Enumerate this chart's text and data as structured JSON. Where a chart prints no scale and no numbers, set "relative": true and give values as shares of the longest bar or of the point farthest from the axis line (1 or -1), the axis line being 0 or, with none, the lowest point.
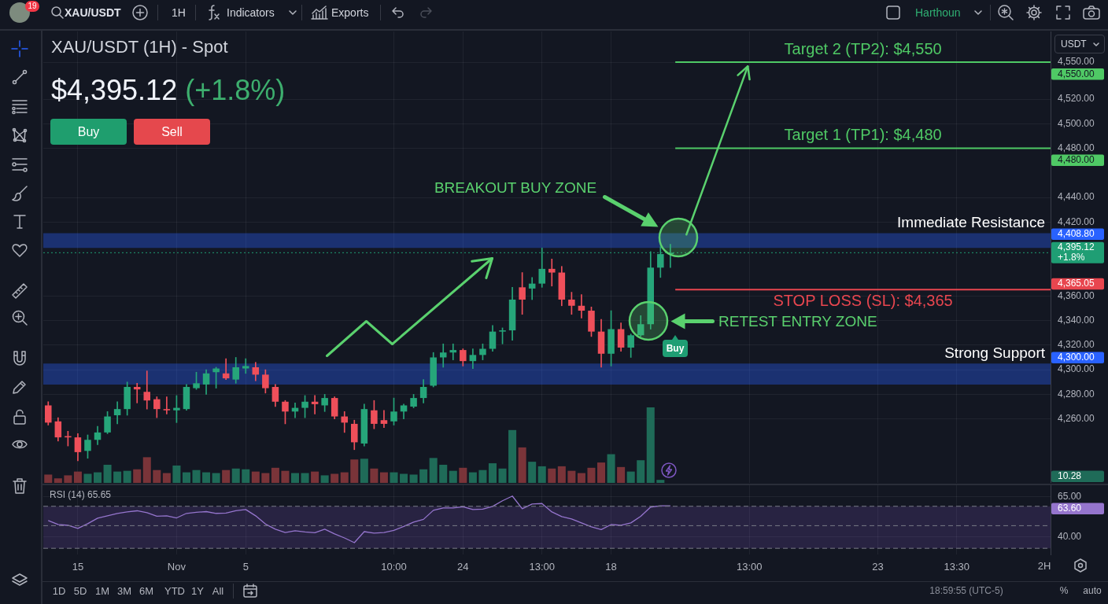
{
  "chart_data": [
    {
      "type": "candlestick",
      "title": "XAU/USDT (1H) - Spot",
      "subtitle": "$4,395.12 (+1.8%)",
      "categories": [
        null,
        null,
        null,
        null,
        null,
        null,
        null,
        null,
        null,
        null,
        null,
        null,
        null,
        null,
        null,
        null,
        null,
        null,
        null,
        null,
        null,
        null,
        null,
        null,
        null,
        null,
        null,
        null,
        null,
        null,
        null,
        null,
        null,
        null,
        null,
        null,
        null,
        null,
        null,
        null,
        null,
        null,
        null,
        null,
        null,
        null,
        null,
        null,
        null,
        null,
        null,
        null,
        null,
        null,
        null,
        null,
        null,
        null,
        null,
        null,
        null,
        null,
        null,
        null,
        null,
        null,
        null,
        null,
        null,
        null,
        null,
        null,
        null,
        null,
        null,
        null,
        null,
        null,
        null,
        null,
        null,
        null,
        null,
        null,
        null,
        null,
        null,
        null,
        null,
        null,
        null,
        null,
        null,
        null,
        null,
        null,
        null,
        null,
        null,
        null,
        null,
        null
      ],
      "ohlc": [
        [
          4271,
          4274,
          4255,
          4257
        ],
        [
          4258,
          4261,
          4242,
          4245
        ],
        [
          4246,
          4250,
          4238,
          4245
        ],
        [
          4245,
          4248,
          4226,
          4233
        ],
        [
          4234,
          4247,
          4228,
          4243
        ],
        [
          4243,
          4254,
          4239,
          4249
        ],
        [
          4249,
          4266,
          4248,
          4262
        ],
        [
          4263,
          4274,
          4256,
          4268
        ],
        [
          4268,
          4290,
          4263,
          4286
        ],
        [
          4286,
          4289,
          4273,
          4284
        ],
        [
          4282,
          4299,
          4268,
          4275
        ],
        [
          4276,
          4278,
          4261,
          4268
        ],
        [
          4268,
          4278,
          4264,
          4267
        ],
        [
          4267,
          4279,
          4257,
          4269
        ],
        [
          4268,
          4288,
          4267,
          4286
        ],
        [
          4285,
          4298,
          4284,
          4289
        ],
        [
          4288,
          4300,
          4280,
          4297
        ],
        [
          4298,
          4302,
          4285,
          4301
        ],
        [
          4297,
          4309,
          4292,
          4293
        ],
        [
          4292,
          4310,
          4289,
          4302
        ],
        [
          4301,
          4309,
          4297,
          4303
        ],
        [
          4302,
          4306,
          4291,
          4296
        ],
        [
          4296,
          4300,
          4281,
          4285
        ],
        [
          4286,
          4288,
          4270,
          4274
        ],
        [
          4274,
          4275,
          4256,
          4266
        ],
        [
          4266,
          4273,
          4261,
          4269
        ],
        [
          4269,
          4279,
          4261,
          4274
        ],
        [
          4274,
          4279,
          4264,
          4272
        ],
        [
          4271,
          4280,
          4266,
          4277
        ],
        [
          4277,
          4278,
          4260,
          4262
        ],
        [
          4262,
          4266,
          4249,
          4257
        ],
        [
          4256,
          4259,
          4235,
          4241
        ],
        [
          4240,
          4272,
          4238,
          4268
        ],
        [
          4267,
          4275,
          4252,
          4256
        ],
        [
          4259,
          4267,
          4253,
          4256
        ],
        [
          4258,
          4277,
          4255,
          4266
        ],
        [
          4266,
          4272,
          4260,
          4271
        ],
        [
          4270,
          4280,
          4269,
          4277
        ],
        [
          4277,
          4292,
          4273,
          4286
        ],
        [
          4287,
          4314,
          4286,
          4310
        ],
        [
          4310,
          4321,
          4302,
          4314
        ],
        [
          4314,
          4321,
          4308,
          4316
        ],
        [
          4316,
          4317,
          4303,
          4307
        ],
        [
          4307,
          4317,
          4301,
          4312
        ],
        [
          4312,
          4321,
          4308,
          4317
        ],
        [
          4317,
          4336,
          4315,
          4331
        ],
        [
          4331,
          4334,
          4321,
          4332
        ],
        [
          4332,
          4367,
          4324,
          4357
        ],
        [
          4367,
          4379,
          4345,
          4357
        ],
        [
          4366,
          4375,
          4357,
          4370
        ],
        [
          4370,
          4399,
          4367,
          4382
        ],
        [
          4382,
          4390,
          4368,
          4379
        ],
        [
          4379,
          4384,
          4352,
          4357
        ],
        [
          4357,
          4363,
          4345,
          4352
        ],
        [
          4352,
          4361,
          4342,
          4348
        ],
        [
          4348,
          4351,
          4327,
          4331
        ],
        [
          4331,
          4341,
          4302,
          4313
        ],
        [
          4313,
          4348,
          4303,
          4333
        ],
        [
          4333,
          4338,
          4315,
          4318
        ],
        [
          4318,
          4329,
          4310,
          4328
        ],
        [
          4328,
          4344,
          4327,
          4337
        ],
        [
          4337,
          4396,
          4333,
          4383
        ],
        [
          4383,
          4400,
          4375,
          4394
        ],
        [
          4394,
          4402,
          4383,
          4395.12
        ],
        null,
        null,
        null,
        null,
        null,
        null,
        null,
        null,
        null,
        null,
        null,
        null,
        null,
        null,
        null,
        null,
        null,
        null,
        null,
        null,
        null,
        null,
        null,
        null,
        null,
        null,
        null,
        null,
        null,
        null,
        null,
        null,
        null,
        null,
        null,
        null,
        null,
        null
      ],
      "colors": [
        "#ef4f5a",
        "#ef4f5a",
        "#ef4f5a",
        "#ef4f5a",
        "#26a67a",
        "#26a67a",
        "#26a67a",
        "#26a67a",
        "#26a67a",
        "#ef4f5a",
        "#ef4f5a",
        "#ef4f5a",
        "#ef4f5a",
        "#26a67a",
        "#26a67a",
        "#26a67a",
        "#26a67a",
        "#26a67a",
        "#ef4f5a",
        "#26a67a",
        "#26a67a",
        "#ef4f5a",
        "#ef4f5a",
        "#ef4f5a",
        "#ef4f5a",
        "#26a67a",
        "#26a67a",
        "#ef4f5a",
        "#26a67a",
        "#ef4f5a",
        "#ef4f5a",
        "#ef4f5a",
        "#26a67a",
        "#ef4f5a",
        "#ef4f5a",
        "#26a67a",
        "#26a67a",
        "#26a67a",
        "#26a67a",
        "#26a67a",
        "#26a67a",
        "#26a67a",
        "#ef4f5a",
        "#26a67a",
        "#26a67a",
        "#26a67a",
        "#26a67a",
        "#26a67a",
        "#ef4f5a",
        "#26a67a",
        "#26a67a",
        "#ef4f5a",
        "#ef4f5a",
        "#ef4f5a",
        "#ef4f5a",
        "#ef4f5a",
        "#ef4f5a",
        "#26a67a",
        "#ef4f5a",
        "#26a67a",
        "#26a67a",
        "#26a67a",
        "#26a67a",
        "#26a67a",
        null,
        null,
        null,
        null,
        null,
        null,
        null,
        null,
        null,
        null,
        null,
        null,
        null,
        null,
        null,
        null,
        null,
        null,
        null,
        null,
        null,
        null,
        null,
        null,
        null,
        null,
        null,
        null,
        null,
        null,
        null,
        null,
        null,
        null,
        null,
        null,
        null,
        null
      ],
      "ylim": [
        4208,
        4575
      ],
      "yticks": [
        {
          "value": 4260,
          "label": "4,260.00"
        },
        {
          "value": 4280,
          "label": "4,280.00"
        },
        {
          "value": 4300,
          "label": "4,300.00"
        },
        {
          "value": 4320,
          "label": "4,320.00"
        },
        {
          "value": 4340,
          "label": "4,340.00"
        },
        {
          "value": 4360,
          "label": "4,360.00"
        },
        {
          "value": 4420,
          "label": "4,420.00"
        },
        {
          "value": 4440,
          "label": "4,440.00"
        },
        {
          "value": 4480,
          "label": "4,480.00"
        },
        {
          "value": 4500,
          "label": "4,500.00"
        },
        {
          "value": 4520,
          "label": "4,520.00"
        },
        {
          "value": 4550,
          "label": "4,550.00"
        }
      ],
      "ref_lines": [
        {
          "axis": "y",
          "value": 4550,
          "label": "Target 2 (TP2): $4,550",
          "color": "#4fc965"
        },
        {
          "axis": "y",
          "value": 4480,
          "label": "Target 1 (TP1): $4,480",
          "color": "#4fc965"
        },
        {
          "axis": "y",
          "value": 4395.12,
          "color": "#1f9e74",
          "line_style": "dotted"
        },
        {
          "axis": "y",
          "value": 4365.05,
          "label": "STOP LOSS (SL): $4,365",
          "color": "#e8464f"
        }
      ],
      "bands": [
        {
          "axis": "y",
          "from": 4399,
          "to": 4411,
          "label": "Immediate Resistance",
          "color": "#2962ff"
        },
        {
          "axis": "y",
          "from": 4288,
          "to": 4305,
          "label": "Strong Support",
          "color": "#2962ff"
        }
      ],
      "annotations": [
        "BREAKOUT BUY ZONE",
        "RETEST ENTRY ZONE",
        "Buy",
        "4,550.00",
        "4,480.00",
        "4,408.80",
        "4,395.12",
        "+1.8%",
        "4,300.00",
        "4,365.05",
        "XAU/USDT",
        "1H",
        "Indicators",
        "Exports",
        "Harthoun",
        "USDT",
        "Buy",
        "Sell",
        "1D",
        "5D",
        "1M",
        "3M",
        "6M",
        "YTD",
        "1Y",
        "All",
        "18:59:55 (UTC-5)",
        "%",
        "auto",
        "2H",
        "19"
      ],
      "grid": true,
      "tick_labels": "y"
    },
    {
      "type": "bar",
      "relative": true,
      "categories": [
        null,
        null,
        null,
        null,
        null,
        null,
        null,
        null,
        null,
        null,
        null,
        null,
        null,
        null,
        null,
        null,
        null,
        null,
        null,
        null,
        null,
        null,
        null,
        null,
        null,
        null,
        null,
        null,
        null,
        null,
        null,
        null,
        null,
        null,
        null,
        null,
        null,
        null,
        null,
        null,
        null,
        null,
        null,
        null,
        null,
        null,
        null,
        null,
        null,
        null,
        null,
        null,
        null,
        null,
        null,
        null,
        null,
        null,
        null,
        null,
        null,
        null,
        null,
        null,
        null,
        null,
        null,
        null,
        null,
        null,
        null,
        null,
        null,
        null,
        null,
        null,
        null,
        null,
        null,
        null,
        null,
        null,
        null,
        null,
        null,
        null,
        null,
        null,
        null,
        null,
        null,
        null,
        null,
        null,
        null,
        null,
        null,
        null,
        null,
        null,
        null,
        null
      ],
      "values": [
        0.11,
        0.06,
        0.1,
        0.15,
        0.12,
        0.14,
        0.24,
        0.15,
        0.16,
        0.18,
        0.34,
        0.17,
        0.13,
        0.23,
        0.14,
        0.17,
        0.14,
        0.13,
        0.17,
        0.19,
        0.18,
        0.15,
        0.13,
        0.2,
        0.16,
        0.13,
        0.13,
        0.15,
        0.1,
        0.12,
        0.14,
        0.31,
        0.32,
        0.19,
        0.14,
        0.14,
        0.12,
        0.11,
        0.18,
        0.33,
        0.24,
        0.16,
        0.2,
        0.14,
        0.17,
        0.26,
        0.19,
        0.7,
        0.47,
        0.28,
        0.22,
        0.19,
        0.22,
        0.16,
        0.13,
        0.2,
        0.27,
        0.38,
        0.21,
        0.15,
        0.3,
        1,
        0.04,
        null,
        null,
        null,
        null,
        null,
        null,
        null,
        null,
        null,
        null,
        null,
        null,
        null,
        null,
        null,
        null,
        null,
        null,
        null,
        null,
        null,
        null,
        null,
        null,
        null,
        null,
        null,
        null,
        null,
        null,
        null,
        null,
        null,
        null,
        null,
        null,
        null,
        null,
        null
      ],
      "colors": [
        "#7a3439",
        "#7a3439",
        "#7a3439",
        "#7a3439",
        "#1f6b58",
        "#1f6b58",
        "#1f6b58",
        "#1f6b58",
        "#1f6b58",
        "#7a3439",
        "#7a3439",
        "#7a3439",
        "#7a3439",
        "#1f6b58",
        "#1f6b58",
        "#1f6b58",
        "#1f6b58",
        "#1f6b58",
        "#7a3439",
        "#1f6b58",
        "#1f6b58",
        "#7a3439",
        "#7a3439",
        "#7a3439",
        "#7a3439",
        "#1f6b58",
        "#1f6b58",
        "#7a3439",
        "#1f6b58",
        "#7a3439",
        "#7a3439",
        "#7a3439",
        "#1f6b58",
        "#7a3439",
        "#7a3439",
        "#1f6b58",
        "#1f6b58",
        "#1f6b58",
        "#1f6b58",
        "#1f6b58",
        "#1f6b58",
        "#1f6b58",
        "#7a3439",
        "#1f6b58",
        "#1f6b58",
        "#1f6b58",
        "#1f6b58",
        "#1f6b58",
        "#7a3439",
        "#1f6b58",
        "#1f6b58",
        "#7a3439",
        "#7a3439",
        "#7a3439",
        "#7a3439",
        "#7a3439",
        "#7a3439",
        "#1f6b58",
        "#7a3439",
        "#1f6b58",
        "#1f6b58",
        "#1f6b58",
        "#1f6b58",
        null,
        null,
        null,
        null,
        null,
        null,
        null,
        null,
        null,
        null,
        null,
        null,
        null,
        null,
        null,
        null,
        null,
        null,
        null,
        null,
        null,
        null,
        null,
        null,
        null,
        null,
        null,
        null,
        null,
        null,
        null,
        null,
        null,
        null,
        null,
        null,
        null,
        null,
        null
      ],
      "annotations": [
        "10.28"
      ],
      "tick_labels": false
    },
    {
      "type": "line",
      "title": "RSI (14) 65.65",
      "categories": [
        null,
        null,
        null,
        "15",
        null,
        null,
        null,
        null,
        null,
        null,
        null,
        null,
        null,
        "Nov",
        null,
        null,
        null,
        null,
        null,
        null,
        "5",
        null,
        null,
        null,
        null,
        null,
        null,
        null,
        null,
        null,
        null,
        null,
        null,
        null,
        null,
        "10:00",
        null,
        null,
        null,
        null,
        null,
        null,
        "24",
        null,
        null,
        null,
        null,
        null,
        null,
        null,
        "13:00",
        null,
        null,
        null,
        null,
        null,
        null,
        "18",
        null,
        null,
        null,
        null,
        null,
        null,
        null,
        null,
        null,
        null,
        null,
        null,
        null,
        "13:00",
        null,
        null,
        null,
        null,
        null,
        null,
        null,
        null,
        null,
        null,
        null,
        null,
        "23",
        null,
        null,
        null,
        null,
        null,
        null,
        null,
        "13:30",
        null,
        null,
        null,
        null,
        null,
        null,
        null,
        null,
        null
      ],
      "series": [
        {
          "color": "#9575cd",
          "values": [
            50.2,
            47.7,
            47.2,
            45.3,
            48.2,
            51.6,
            53.1,
            54.6,
            55.5,
            56.2,
            55.0,
            52.8,
            53.1,
            51.8,
            54.6,
            55.3,
            55.7,
            54.6,
            54.8,
            56.3,
            57.0,
            53.1,
            48.0,
            44.8,
            42.8,
            43.8,
            43.1,
            42.6,
            44.8,
            41.9,
            39.4,
            36.5,
            43.3,
            42.4,
            42.8,
            44.1,
            46.5,
            49.2,
            50.9,
            56.5,
            58.0,
            58.0,
            58.7,
            57.0,
            57.2,
            58.9,
            62.4,
            65.3,
            57.5,
            60.4,
            60.7,
            55.5,
            52.6,
            51.1,
            48.7,
            46.3,
            44.6,
            47.7,
            47.2,
            48.7,
            52.8,
            58.5,
            59.3,
            59.3,
            null,
            null,
            null,
            null,
            null,
            null,
            null,
            null,
            null,
            null,
            null,
            null,
            null,
            null,
            null,
            null,
            null,
            null,
            null,
            null,
            null,
            null,
            null,
            null,
            null,
            null,
            null,
            null,
            null,
            null,
            null,
            null,
            null,
            null,
            null,
            null,
            null,
            null
          ]
        }
      ],
      "ylim": [
        29,
        72
      ],
      "yticks": [
        {
          "value": 40,
          "label": "40.00"
        },
        {
          "value": 65,
          "label": "65.00"
        }
      ],
      "bands": [
        {
          "axis": "y",
          "from": 33,
          "to": 59,
          "color": "#7e57c2"
        }
      ],
      "ref_lines": [
        {
          "axis": "y",
          "value": 59,
          "line_style": "dashed",
          "color": "#787b86"
        },
        {
          "axis": "y",
          "value": 47,
          "line_style": "dashed",
          "color": "#787b86"
        },
        {
          "axis": "y",
          "value": 33,
          "line_style": "dashed",
          "color": "#787b86"
        }
      ],
      "annotations": [
        "63.60"
      ],
      "grid": true
    }
  ]
}
